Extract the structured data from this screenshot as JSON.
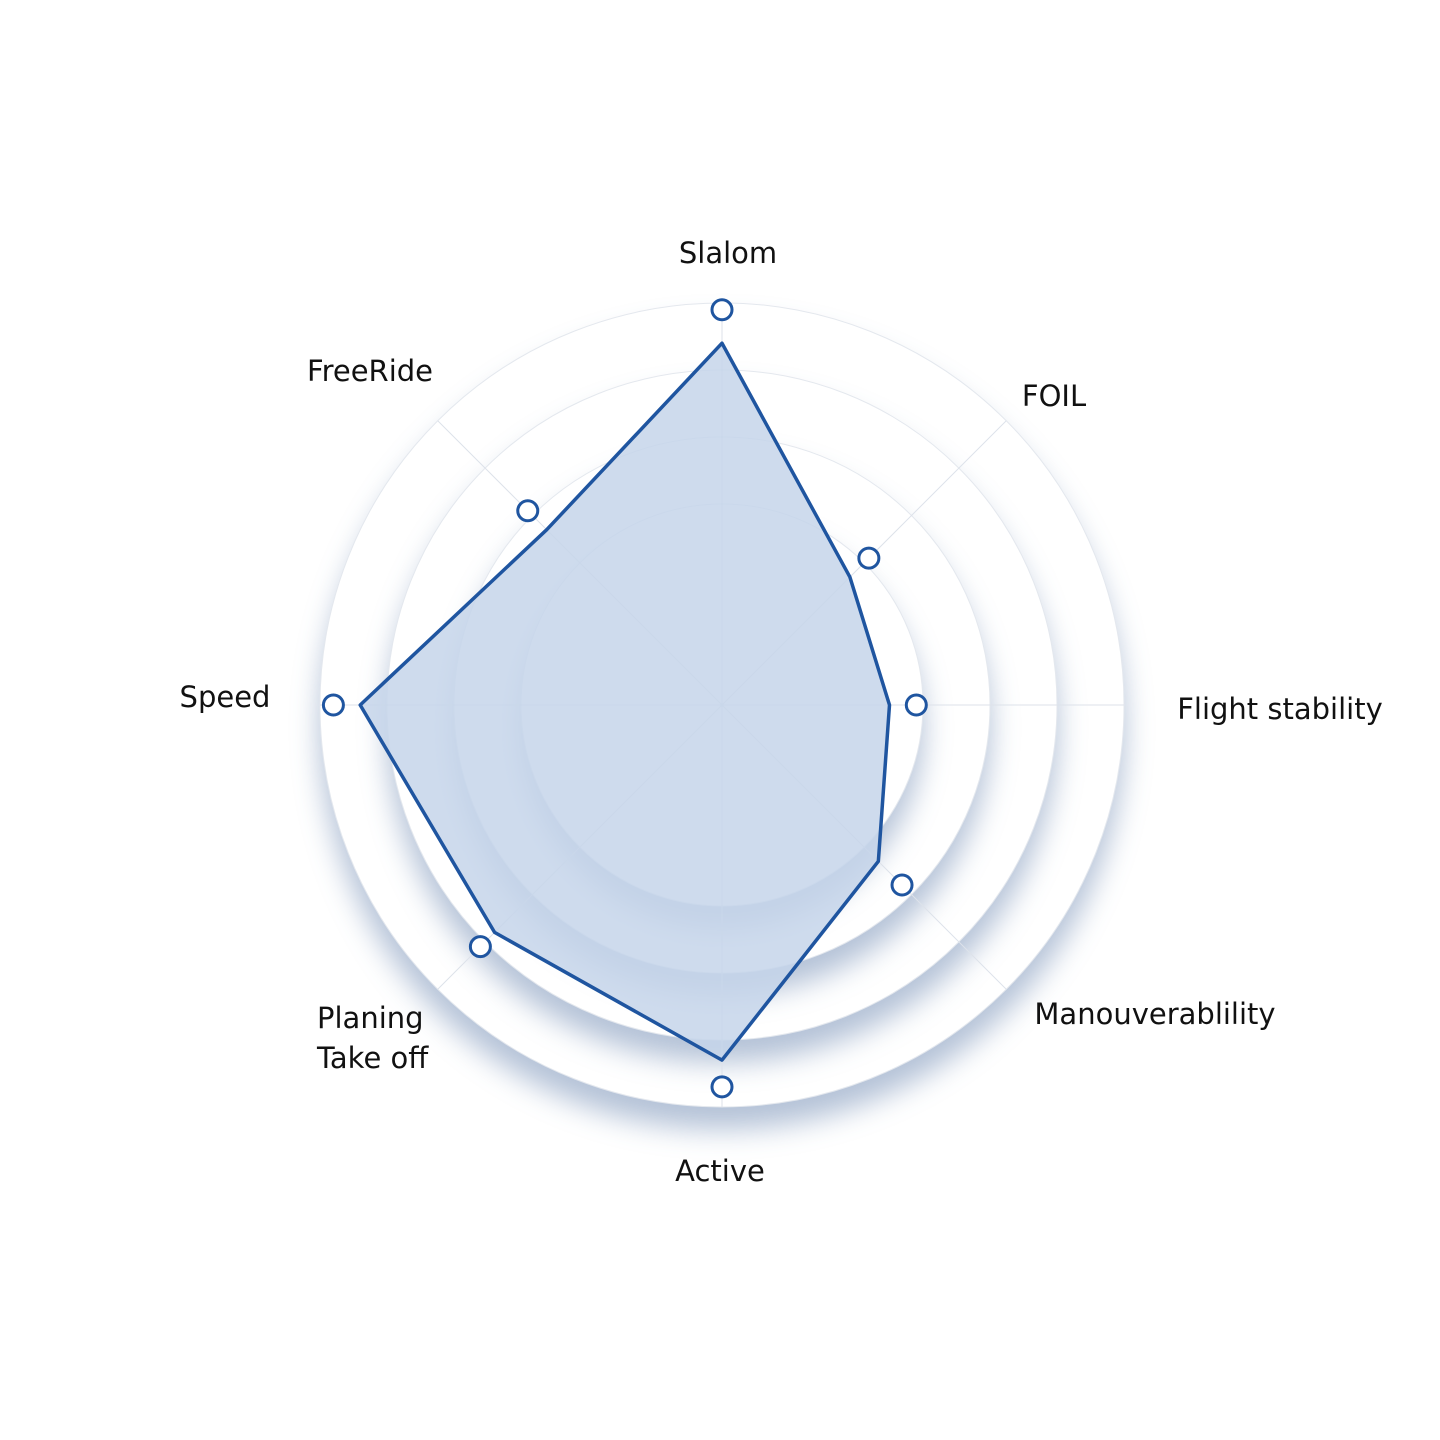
{
  "chart_data": {
    "type": "radar",
    "categories": [
      "Slalom",
      "FOIL",
      "Flight stability",
      "Manouverablility",
      "Active",
      "Planing Take off",
      "Speed",
      "FreeRide"
    ],
    "series": [
      {
        "color": "#1f55a0",
        "fill": "#c5d5ea",
        "values": [
          5.4,
          2.7,
          2.5,
          3.3,
          5.3,
          4.8,
          5.4,
          3.7
        ]
      },
      {
        "color": "#1f55a0",
        "marker": "open-circle",
        "values": [
          5.9,
          3.1,
          2.9,
          3.8,
          5.7,
          5.1,
          5.8,
          4.1
        ]
      }
    ],
    "rlim": [
      0,
      6
    ],
    "rticks": [
      3,
      4,
      5,
      6
    ],
    "grid": true
  }
}
